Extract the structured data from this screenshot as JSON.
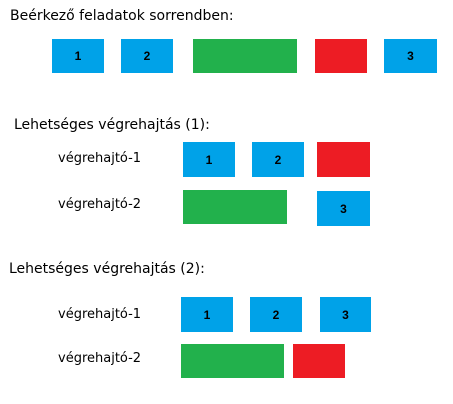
{
  "colors": {
    "blue": "#00a2e8",
    "green": "#22b14c",
    "red": "#ed1c24"
  },
  "incoming": {
    "title": "Beérkező feladatok sorrendben:",
    "tasks": [
      {
        "label": "1",
        "color": "blue"
      },
      {
        "label": "2",
        "color": "blue"
      },
      {
        "label": "",
        "color": "green"
      },
      {
        "label": "",
        "color": "red"
      },
      {
        "label": "3",
        "color": "blue"
      }
    ]
  },
  "scenario1": {
    "title": "Lehetséges végrehajtás (1):",
    "executors": [
      {
        "name": "végrehajtó-1",
        "tasks": [
          {
            "label": "1",
            "color": "blue"
          },
          {
            "label": "2",
            "color": "blue"
          },
          {
            "label": "",
            "color": "red"
          }
        ]
      },
      {
        "name": "végrehajtó-2",
        "tasks": [
          {
            "label": "",
            "color": "green"
          },
          {
            "label": "3",
            "color": "blue"
          }
        ]
      }
    ]
  },
  "scenario2": {
    "title": "Lehetséges végrehajtás (2):",
    "executors": [
      {
        "name": "végrehajtó-1",
        "tasks": [
          {
            "label": "1",
            "color": "blue"
          },
          {
            "label": "2",
            "color": "blue"
          },
          {
            "label": "3",
            "color": "blue"
          }
        ]
      },
      {
        "name": "végrehajtó-2",
        "tasks": [
          {
            "label": "",
            "color": "green"
          },
          {
            "label": "",
            "color": "red"
          }
        ]
      }
    ]
  }
}
